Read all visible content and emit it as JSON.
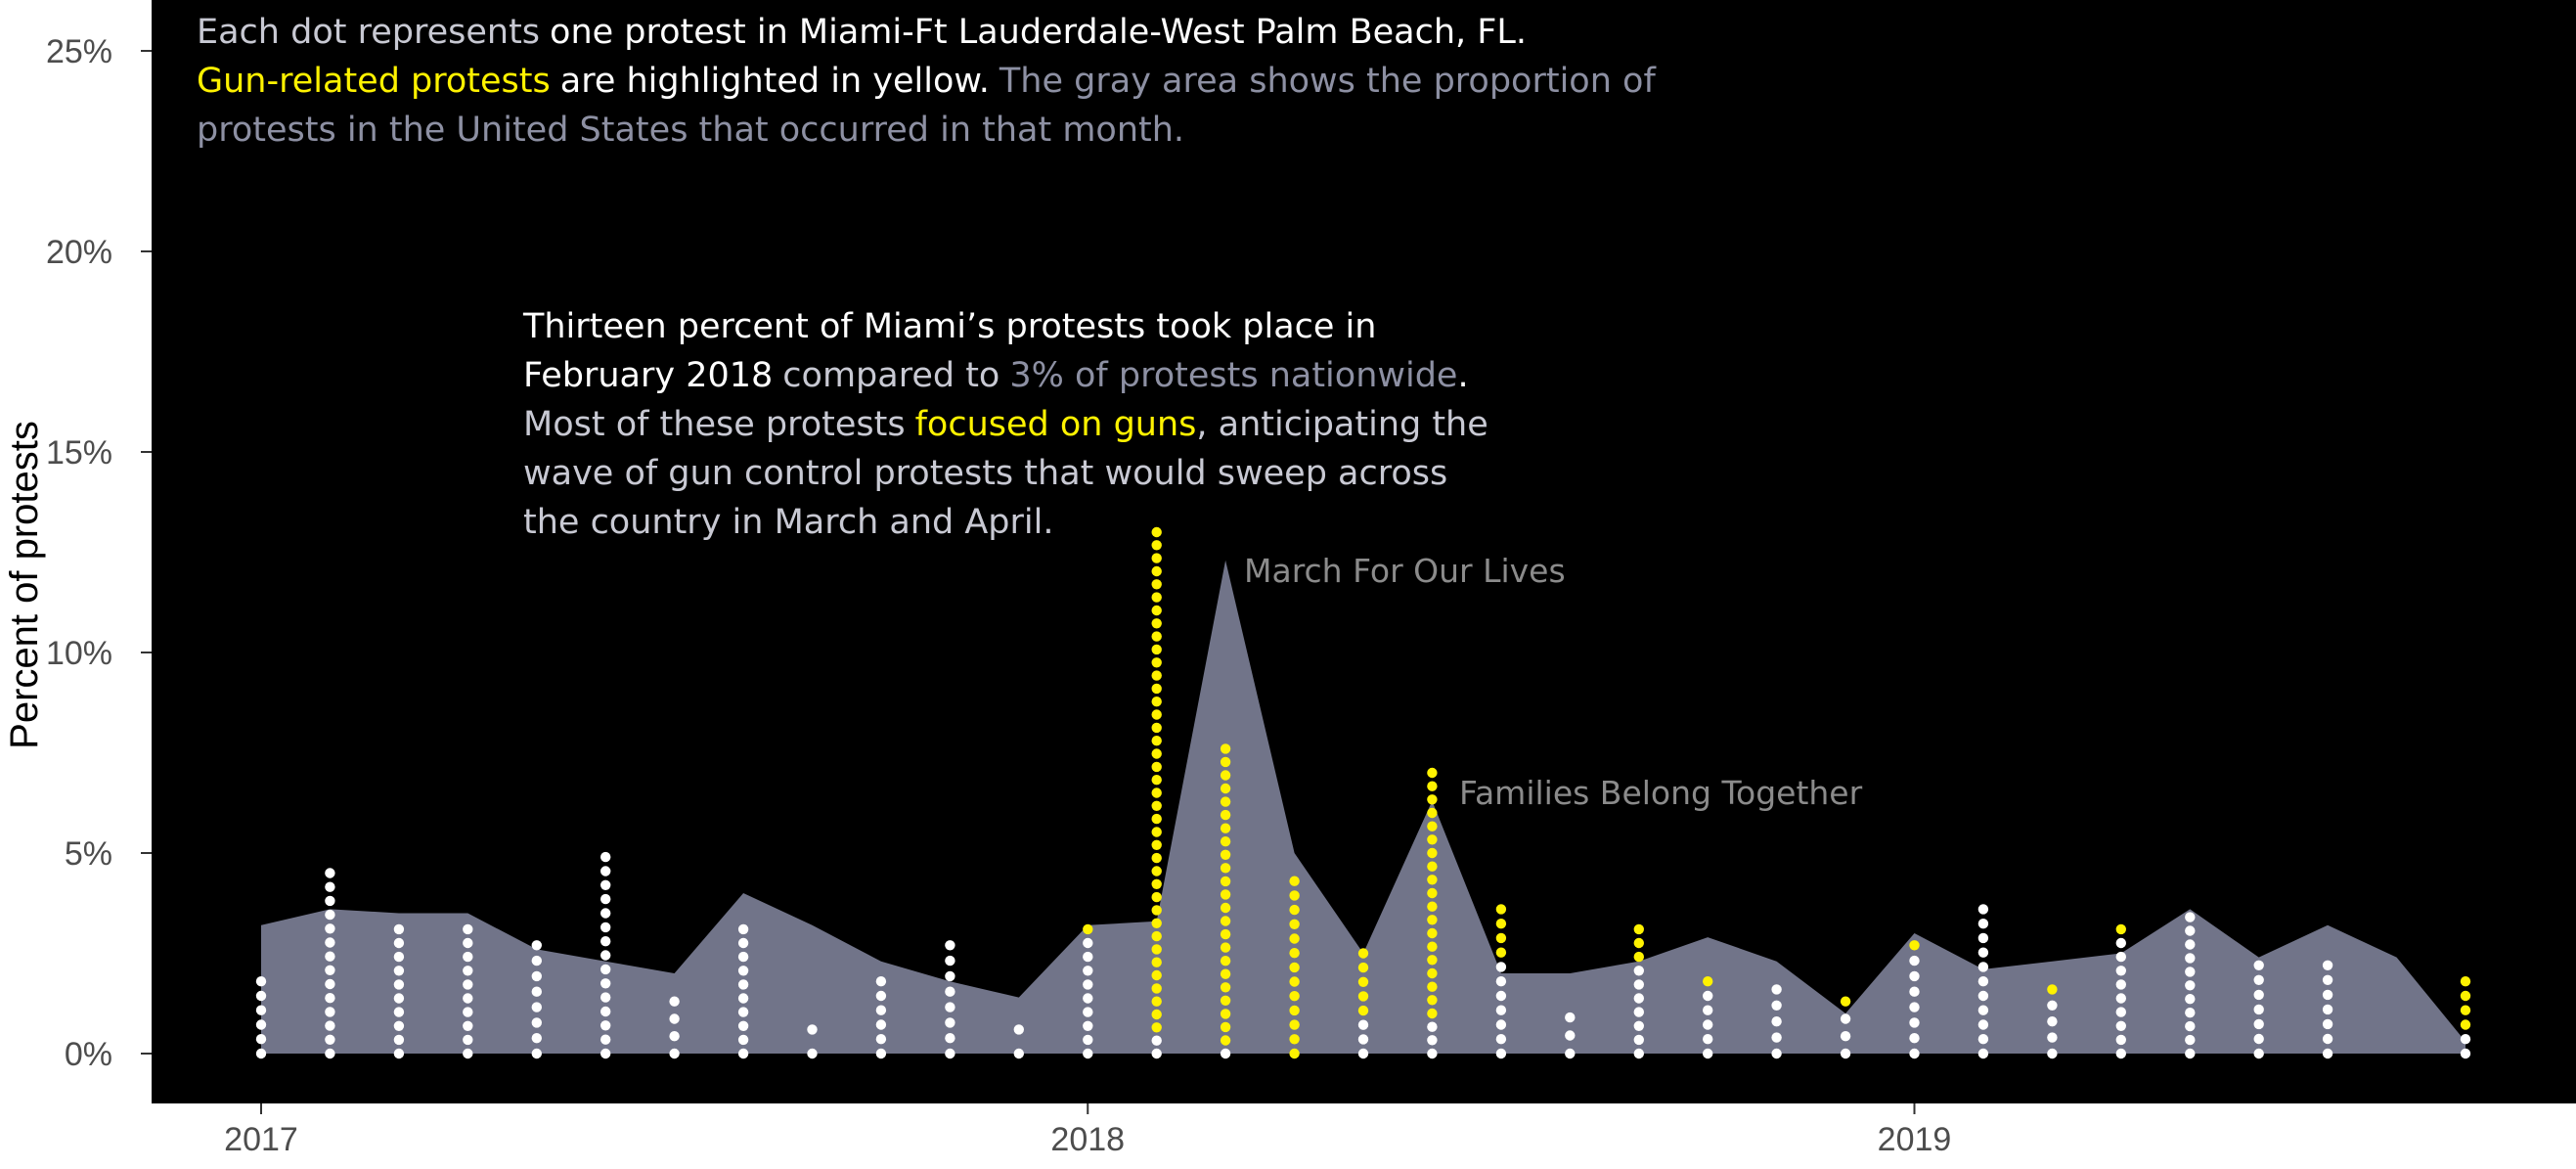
{
  "chart_data": {
    "type": "area",
    "ylabel": "Percent of protests",
    "ylim": [
      0,
      25
    ],
    "y_ticks": [
      "0%",
      "5%",
      "10%",
      "15%",
      "20%",
      "25%"
    ],
    "x_ticks": [
      "2017",
      "2018",
      "2019"
    ],
    "months": [
      "2017-01",
      "2017-02",
      "2017-03",
      "2017-04",
      "2017-05",
      "2017-06",
      "2017-07",
      "2017-08",
      "2017-09",
      "2017-10",
      "2017-11",
      "2017-12",
      "2018-01",
      "2018-02",
      "2018-03",
      "2018-04",
      "2018-05",
      "2018-06",
      "2018-07",
      "2018-08",
      "2018-09",
      "2018-10",
      "2018-11",
      "2018-12",
      "2019-01",
      "2019-02",
      "2019-03",
      "2019-04",
      "2019-05",
      "2019-06",
      "2019-07",
      "2019-08",
      "2019-09"
    ],
    "series": [
      {
        "name": "United States",
        "values": [
          3.2,
          3.6,
          3.5,
          3.5,
          2.6,
          2.3,
          2.0,
          4.0,
          3.2,
          2.3,
          1.8,
          1.4,
          3.2,
          3.3,
          12.3,
          5.0,
          2.5,
          6.3,
          2.0,
          2.0,
          2.3,
          2.9,
          2.3,
          1.0,
          3.0,
          2.1,
          2.3,
          2.5,
          3.6,
          2.4,
          3.2,
          2.4,
          0.3
        ]
      },
      {
        "name": "Miami-Ft Lauderdale-West Palm Beach, FL",
        "values": [
          1.8,
          4.5,
          3.1,
          3.1,
          2.7,
          4.9,
          1.3,
          3.1,
          0.6,
          1.8,
          2.7,
          0.6,
          3.1,
          13.0,
          7.6,
          4.3,
          2.5,
          7.0,
          3.6,
          0.9,
          3.1,
          1.8,
          1.6,
          1.3,
          2.7,
          3.6,
          1.6,
          3.1,
          3.4,
          2.2,
          2.2,
          0,
          1.8
        ]
      },
      {
        "name": "Gun-related",
        "values": [
          0,
          0,
          0,
          0,
          0,
          0,
          0,
          0,
          0,
          0,
          0,
          0,
          0.3,
          12.5,
          7.2,
          4.0,
          1.5,
          6.0,
          1.2,
          0,
          1.0,
          0.3,
          0,
          0.3,
          0.3,
          0,
          0.3,
          0.3,
          0,
          0,
          0,
          0,
          1.2
        ]
      }
    ],
    "annotations": [
      {
        "month": "2018-03",
        "text": "March For Our Lives"
      },
      {
        "month": "2018-06",
        "text": "Families Belong Together"
      }
    ],
    "colors": {
      "background": "#000000",
      "area": "#717489",
      "dot": "#ffffff",
      "gun": "#fff200",
      "muted": "#a9abbc",
      "event": "#8b8b8b"
    }
  },
  "notes": {
    "intro_a": "Each dot represents",
    "intro_b": "one protest in Miami-Ft Lauderdale-West Palm Beach, FL.",
    "intro_c": "Gun-related protests",
    "intro_d": "are highlighted in yellow.",
    "intro_e": "The gray area shows the proportion of",
    "intro_f": "protests in the United States that occurred in that month.",
    "feb_a": "Thirteen percent of Miami’s protests took place in",
    "feb_b": "February 2018",
    "feb_c": "compared to",
    "feb_d": "3% of protests nationwide",
    "feb_e": ".",
    "feb_f": "Most of these protests",
    "feb_g": "focused on guns",
    "feb_h": ", anticipating the",
    "feb_i": "wave of gun control protests that would sweep across",
    "feb_j": "the country in March and April."
  }
}
